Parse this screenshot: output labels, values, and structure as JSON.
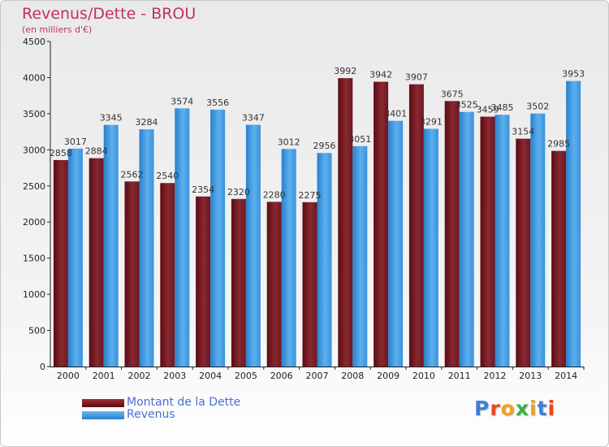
{
  "chart_data": {
    "type": "bar",
    "title": "Revenus/Dette - BROU",
    "subtitle": "(en milliers d'€)",
    "categories": [
      "2000",
      "2001",
      "2002",
      "2003",
      "2004",
      "2005",
      "2006",
      "2007",
      "2008",
      "2009",
      "2010",
      "2011",
      "2012",
      "2013",
      "2014"
    ],
    "series": [
      {
        "name": "Montant de la Dette",
        "color": "#7a1a22",
        "values": [
          2858,
          2884,
          2562,
          2540,
          2354,
          2320,
          2280,
          2275,
          3992,
          3942,
          3907,
          3675,
          3459,
          3154,
          2985
        ],
        "labels": [
          "2858",
          "2884",
          "2562",
          "2540",
          "2354",
          "2320",
          "2280",
          "2275",
          "3992",
          "3942",
          "3907",
          "3675",
          "3459",
          "3154",
          "2985"
        ]
      },
      {
        "name": "Revenus",
        "color": "#3d9ae0",
        "values": [
          3017,
          3345,
          3284,
          3574,
          3556,
          3347,
          3012,
          2956,
          3051,
          3401,
          3291,
          3525,
          3485,
          3502,
          3953
        ],
        "labels": [
          "3017",
          "3345",
          "3284",
          "3574",
          "3556",
          "3347",
          "3012",
          "2956",
          "3051",
          "3401",
          "3291",
          "3525",
          "3485",
          "3502",
          "3953"
        ]
      }
    ],
    "ylim": [
      0,
      4500
    ],
    "yticks": [
      "0",
      "500",
      "1000",
      "1500",
      "2000",
      "2500",
      "3000",
      "3500",
      "4000",
      "4500"
    ],
    "grid": false,
    "legend_position": "bottom-left"
  },
  "logo": {
    "letters": [
      "P",
      "r",
      "o",
      "x",
      "i",
      "t",
      "i"
    ],
    "colors": [
      "#3d7fd8",
      "#e8462a",
      "#f0a020",
      "#3cb04a",
      "#f0a020",
      "#3d7fd8",
      "#e8462a"
    ]
  }
}
